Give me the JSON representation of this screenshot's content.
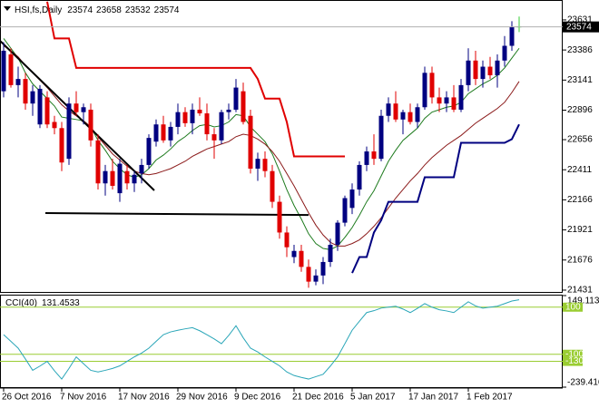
{
  "chart_data": [
    {
      "type": "candlestick",
      "title": "HSI,fs,Daily",
      "categories": [
        "26 Oct 2016",
        null,
        null,
        null,
        null,
        null,
        null,
        null,
        "7 Nov 2016",
        null,
        null,
        null,
        null,
        null,
        null,
        null,
        "17 Nov 2016",
        null,
        null,
        null,
        null,
        null,
        null,
        null,
        "29 Nov 2016",
        null,
        null,
        null,
        null,
        null,
        null,
        null,
        "9 Dec 2016",
        null,
        null,
        null,
        null,
        null,
        null,
        null,
        "21 Dec 2016",
        null,
        null,
        null,
        null,
        null,
        null,
        null,
        "5 Jan 2017",
        null,
        null,
        null,
        null,
        null,
        null,
        null,
        "17 Jan 2017",
        null,
        null,
        null,
        null,
        null,
        null,
        null,
        "1 Feb 2017",
        null,
        null,
        null,
        null,
        null,
        null,
        null
      ],
      "open": [
        23050,
        23350,
        23100,
        23150,
        22950,
        22780,
        23000,
        22800,
        22750,
        22500,
        22950,
        22880,
        22900,
        22650,
        22300,
        22400,
        22220,
        22400,
        22300,
        22380,
        22450,
        22640,
        22780,
        22650,
        22760,
        22880,
        22790,
        22900,
        22870,
        22700,
        22650,
        22880,
        22900,
        23050,
        22850,
        22420,
        22500,
        22400,
        22150,
        21900,
        21700,
        21750,
        21620,
        21500,
        21550,
        21660,
        21800,
        21980,
        22100,
        22250,
        22450,
        22560,
        22500,
        22850,
        22950,
        22820,
        22880,
        22800,
        22920,
        23200,
        23000,
        22950,
        23000,
        22900,
        23100,
        23300,
        23150,
        23250,
        23180,
        23300,
        23420,
        23574
      ],
      "high": [
        23450,
        23400,
        23250,
        23200,
        23100,
        23100,
        23050,
        22850,
        22800,
        23000,
        23050,
        22950,
        22950,
        22700,
        22450,
        22500,
        22500,
        22450,
        22400,
        22500,
        22700,
        22820,
        22850,
        22800,
        22950,
        22920,
        22950,
        23000,
        22950,
        22750,
        22900,
        22950,
        23150,
        23120,
        22900,
        22550,
        22560,
        22450,
        22200,
        21950,
        21800,
        21800,
        21680,
        21600,
        21700,
        21850,
        22000,
        22200,
        22300,
        22480,
        22600,
        22700,
        22900,
        23000,
        23050,
        22900,
        22950,
        22950,
        23250,
        23250,
        23080,
        23050,
        23100,
        23150,
        23400,
        23380,
        23300,
        23330,
        23350,
        23500,
        23620,
        23658
      ],
      "low": [
        23000,
        23080,
        23000,
        22900,
        22850,
        22750,
        22750,
        22700,
        22400,
        22450,
        22850,
        22780,
        22600,
        22250,
        22200,
        22250,
        22150,
        22250,
        22230,
        22300,
        22420,
        22600,
        22630,
        22600,
        22700,
        22760,
        22700,
        22850,
        22650,
        22500,
        22620,
        22820,
        22880,
        22780,
        22380,
        22320,
        22350,
        22100,
        21850,
        21700,
        21650,
        21580,
        21450,
        21470,
        21480,
        21620,
        21750,
        21950,
        22050,
        22200,
        22400,
        22450,
        22480,
        22800,
        22800,
        22700,
        22780,
        22750,
        22900,
        22950,
        22880,
        22880,
        22880,
        22880,
        23050,
        23100,
        23080,
        23150,
        23080,
        23250,
        23380,
        23532
      ],
      "close": [
        23380,
        23100,
        23150,
        22950,
        23050,
        23070,
        22780,
        22750,
        22470,
        22950,
        22880,
        22920,
        22650,
        22300,
        22400,
        22280,
        22460,
        22300,
        22370,
        22450,
        22670,
        22780,
        22650,
        22760,
        22880,
        22790,
        22900,
        22870,
        22700,
        22650,
        22880,
        22900,
        23080,
        22800,
        22420,
        22500,
        22400,
        22150,
        21900,
        21780,
        21750,
        21620,
        21500,
        21550,
        21660,
        21800,
        21980,
        22180,
        22250,
        22450,
        22560,
        22500,
        22850,
        22950,
        22820,
        22880,
        22800,
        22920,
        23200,
        23000,
        22950,
        23000,
        22900,
        23100,
        23300,
        23150,
        23250,
        23180,
        23300,
        23420,
        23574,
        23574
      ],
      "up_color": "#000080",
      "down_color": "#e00000",
      "doji_color": "#33cc33",
      "ylim": [
        21416,
        23793
      ],
      "yticks": [
        23631,
        23386,
        23141,
        22896,
        22656,
        22411,
        22166,
        21921,
        21676,
        21431
      ],
      "overlays": [
        {
          "color": "#1e7b1e",
          "values": [
            23480,
            23400,
            23320,
            23200,
            23110,
            23050,
            22990,
            22930,
            22840,
            22830,
            22820,
            22810,
            22760,
            22650,
            22570,
            22480,
            22420,
            22370,
            22350,
            22370,
            22420,
            22490,
            22530,
            22580,
            22640,
            22680,
            22730,
            22770,
            22780,
            22760,
            22770,
            22800,
            22860,
            22850,
            22760,
            22700,
            22640,
            22540,
            22400,
            22250,
            22120,
            22010,
            21890,
            21810,
            21770,
            21760,
            21790,
            21860,
            21940,
            22040,
            22150,
            22240,
            22360,
            22480,
            22570,
            22650,
            22700,
            22750,
            22830,
            22880,
            22900,
            22920,
            22930,
            22960,
            23030,
            23070,
            23110,
            23140,
            23180,
            23240,
            23320,
            23400
          ]
        },
        {
          "color": "#8b1a1a",
          "values": [
            23420,
            23380,
            23330,
            23260,
            23200,
            23140,
            23080,
            23010,
            22940,
            22890,
            22850,
            22810,
            22760,
            22680,
            22610,
            22540,
            22490,
            22440,
            22400,
            22380,
            22370,
            22380,
            22400,
            22420,
            22450,
            22480,
            22520,
            22550,
            22580,
            22600,
            22620,
            22640,
            22680,
            22700,
            22690,
            22660,
            22620,
            22560,
            22480,
            22380,
            22280,
            22170,
            22060,
            21960,
            21880,
            21820,
            21790,
            21790,
            21810,
            21840,
            21890,
            21950,
            22020,
            22100,
            22180,
            22250,
            22320,
            22380,
            22450,
            22510,
            22560,
            22610,
            22650,
            22690,
            22740,
            22790,
            22830,
            22870,
            22910,
            22960,
            23040,
            23130
          ]
        },
        {
          "color": "#e00000",
          "values": [
            null,
            null,
            null,
            null,
            null,
            null,
            23780,
            23480,
            23480,
            23480,
            23240,
            23240,
            23240,
            23240,
            23240,
            23240,
            23240,
            23240,
            23240,
            23240,
            23240,
            23240,
            23240,
            23240,
            23240,
            23240,
            23240,
            23240,
            23240,
            23240,
            23240,
            23240,
            23240,
            23240,
            23240,
            23150,
            22990,
            22990,
            22990,
            22800,
            22520,
            22520,
            22520,
            22520,
            22520,
            22520,
            22520,
            22520,
            null,
            null,
            null,
            null,
            null,
            null,
            null,
            null,
            null,
            null,
            null,
            null,
            null,
            null,
            null,
            null,
            null,
            null,
            null,
            null,
            null,
            null,
            null,
            null
          ]
        },
        {
          "color": "#000080",
          "values": [
            null,
            null,
            null,
            null,
            null,
            null,
            null,
            null,
            null,
            null,
            null,
            null,
            null,
            null,
            null,
            null,
            null,
            null,
            null,
            null,
            null,
            null,
            null,
            null,
            null,
            null,
            null,
            null,
            null,
            null,
            null,
            null,
            null,
            null,
            null,
            null,
            null,
            null,
            null,
            null,
            null,
            null,
            null,
            null,
            null,
            null,
            null,
            null,
            21570,
            21700,
            21700,
            21900,
            22000,
            22150,
            22150,
            22150,
            22150,
            22150,
            22350,
            22350,
            22350,
            22350,
            22350,
            22630,
            22630,
            22630,
            22630,
            22630,
            22630,
            22630,
            22660,
            22780
          ]
        }
      ],
      "trendlines": [
        {
          "color": "#000000",
          "x": [
            -0.5,
            20.75
          ],
          "y": [
            23461,
            22243
          ]
        },
        {
          "color": "#000000",
          "x": [
            5.75,
            42
          ],
          "y": [
            22058,
            22043
          ]
        }
      ]
    },
    {
      "type": "line",
      "title": "CCI(40)",
      "color": "#2aa6b8",
      "values": [
        -17,
        -45,
        -74,
        -120,
        -168,
        -150,
        -130,
        -170,
        -205,
        -160,
        -111,
        -140,
        -168,
        -175,
        -168,
        -160,
        -149,
        -130,
        -111,
        -95,
        -74,
        -45,
        -17,
        -5,
        2,
        8,
        13,
        0,
        -17,
        -35,
        -55,
        -20,
        21,
        -30,
        -74,
        -90,
        -111,
        -130,
        -149,
        -175,
        -190,
        -198,
        -205,
        -195,
        -185,
        -150,
        -111,
        -55,
        2,
        40,
        77,
        85,
        96,
        100,
        104,
        92,
        77,
        95,
        115,
        100,
        89,
        84,
        77,
        100,
        123,
        105,
        96,
        100,
        104,
        115,
        126,
        131.4533
      ],
      "ylim": [
        -239.416,
        149.1138
      ],
      "yticks": [
        149.1138,
        -239.416
      ],
      "levels": [
        100,
        -100,
        -130
      ],
      "level_color": "#9acd32"
    }
  ]
}
